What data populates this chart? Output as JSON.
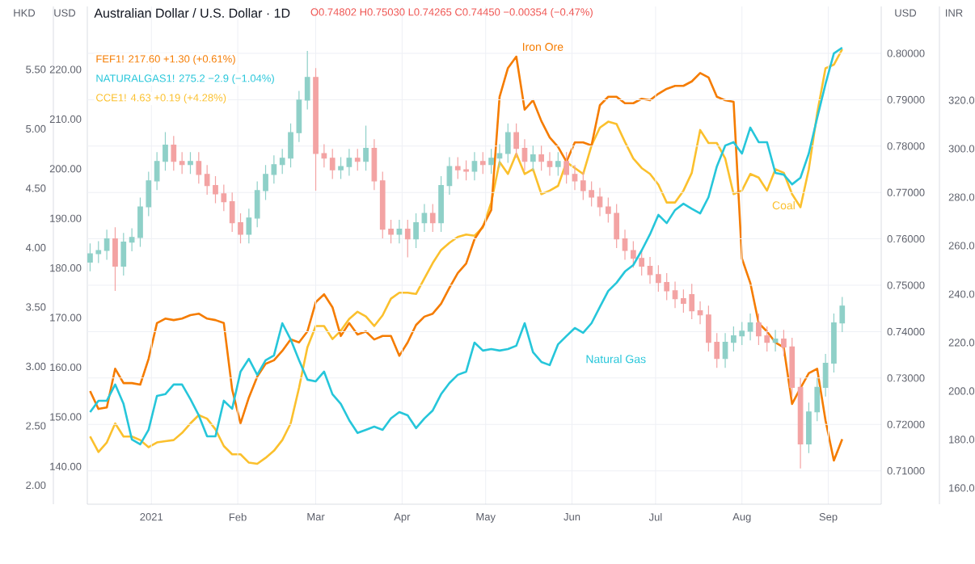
{
  "chart_data": [
    {
      "type": "candlestick",
      "title": "Australian Dollar / U.S. Dollar · 1D",
      "subtitle": "O0.74802 H0.75030 L0.74265 C0.74450 −0.00354 (−0.47%)",
      "annotations": [
        "FEF1! 217.60 +1.30 (+0.61%)",
        "NATURALGAS1! 275.2 −2.9 (−1.04%)",
        "CCE1! 4.63 +0.19 (+4.28%)"
      ],
      "ylabel": "USD",
      "y2label": "USD",
      "y3label": "HKD",
      "colors": [
        "#8fd0c8",
        "#8fd0c8",
        "#8fd0c8",
        "#f3a3a3",
        "#8fd0c8",
        "#8fd0c8",
        "#8fd0c8",
        "#8fd0c8",
        "#8fd0c8",
        "#8fd0c8",
        "#f3a3a3",
        "#f3a3a3",
        "#8fd0c8",
        "#f3a3a3",
        "#f3a3a3",
        "#f3a3a3",
        "#f3a3a3",
        "#f3a3a3",
        "#f3a3a3",
        "#8fd0c8",
        "#8fd0c8",
        "#8fd0c8",
        "#8fd0c8",
        "#8fd0c8",
        "#8fd0c8",
        "#8fd0c8",
        "#8fd0c8",
        "#f3a3a3",
        "#f3a3a3",
        "#f3a3a3",
        "#8fd0c8",
        "#8fd0c8",
        "#f3a3a3",
        "#8fd0c8",
        "#f3a3a3",
        "#f3a3a3",
        "#f3a3a3",
        "#8fd0c8",
        "#f3a3a3",
        "#8fd0c8",
        "#8fd0c8",
        "#f3a3a3",
        "#8fd0c8",
        "#8fd0c8",
        "#f3a3a3",
        "#f3a3a3",
        "#8fd0c8",
        "#f3a3a3",
        "#8fd0c8",
        "#8fd0c8",
        "#8fd0c8",
        "#f3a3a3",
        "#f3a3a3",
        "#8fd0c8",
        "#f3a3a3",
        "#f3a3a3",
        "#8fd0c8",
        "#f3a3a3",
        "#f3a3a3",
        "#f3a3a3",
        "#f3a3a3",
        "#f3a3a3",
        "#f3a3a3",
        "#f3a3a3",
        "#f3a3a3",
        "#f3a3a3",
        "#f3a3a3",
        "#f3a3a3",
        "#f3a3a3",
        "#f3a3a3",
        "#f3a3a3",
        "#f3a3a3",
        "#f3a3a3",
        "#f3a3a3",
        "#f3a3a3",
        "#f3a3a3",
        "#8fd0c8",
        "#8fd0c8",
        "#8fd0c8",
        "#8fd0c8",
        "#f3a3a3",
        "#f3a3a3",
        "#8fd0c8",
        "#f3a3a3",
        "#f3a3a3",
        "#f3a3a3",
        "#8fd0c8",
        "#8fd0c8",
        "#8fd0c8",
        "#8fd0c8",
        "#8fd0c8"
      ],
      "grid": true,
      "xlim": [
        "2020-12-09",
        "2021-09-20"
      ],
      "xticks": [
        {
          "value": "2021-01-01",
          "label": "2021"
        },
        {
          "value": "2021-02-01",
          "label": "Feb"
        },
        {
          "value": "2021-03-01",
          "label": "Mar"
        },
        {
          "value": "2021-04-01",
          "label": "Apr"
        },
        {
          "value": "2021-05-01",
          "label": "May"
        },
        {
          "value": "2021-06-01",
          "label": "Jun"
        },
        {
          "value": "2021-07-01",
          "label": "Jul"
        },
        {
          "value": "2021-08-01",
          "label": "Aug"
        },
        {
          "value": "2021-09-01",
          "label": "Sep"
        }
      ],
      "ylim": [
        0.7028,
        0.8101
      ],
      "yticks": [
        {
          "value": 0.71,
          "label": "0.71000"
        },
        {
          "value": 0.72,
          "label": "0.72000"
        },
        {
          "value": 0.73,
          "label": "0.73000"
        },
        {
          "value": 0.74,
          "label": "0.74000"
        },
        {
          "value": 0.75,
          "label": "0.75000"
        },
        {
          "value": 0.76,
          "label": "0.76000"
        },
        {
          "value": 0.77,
          "label": "0.77000"
        },
        {
          "value": 0.78,
          "label": "0.78000"
        },
        {
          "value": 0.79,
          "label": "0.79000"
        },
        {
          "value": 0.8,
          "label": "0.80000"
        }
      ],
      "y2lim": [
        132.4,
        232.7
      ],
      "y2ticks": [
        {
          "value": 140,
          "label": "140.00"
        },
        {
          "value": 150,
          "label": "150.00"
        },
        {
          "value": 160,
          "label": "160.00"
        },
        {
          "value": 170,
          "label": "170.00"
        },
        {
          "value": 180,
          "label": "180.00"
        },
        {
          "value": 190,
          "label": "190.00"
        },
        {
          "value": 200,
          "label": "200.00"
        },
        {
          "value": 210,
          "label": "210.00"
        },
        {
          "value": 220,
          "label": "220.00"
        }
      ],
      "y3lim": [
        1.84,
        6.03
      ],
      "y3ticks": [
        {
          "value": 2,
          "label": "2.00"
        },
        {
          "value": 2.5,
          "label": "2.50"
        },
        {
          "value": 3,
          "label": "3.00"
        },
        {
          "value": 3.5,
          "label": "3.50"
        },
        {
          "value": 4,
          "label": "4.00"
        },
        {
          "value": 4.5,
          "label": "4.50"
        },
        {
          "value": 5,
          "label": "5.00"
        },
        {
          "value": 5.5,
          "label": "5.50"
        }
      ],
      "x": [
        "2020-12-10",
        "2020-12-13",
        "2020-12-16",
        "2020-12-19",
        "2020-12-22",
        "2020-12-25",
        "2020-12-28",
        "2020-12-31",
        "2021-01-03",
        "2021-01-06",
        "2021-01-09",
        "2021-01-12",
        "2021-01-15",
        "2021-01-18",
        "2021-01-21",
        "2021-01-24",
        "2021-01-27",
        "2021-01-30",
        "2021-02-02",
        "2021-02-05",
        "2021-02-08",
        "2021-02-11",
        "2021-02-14",
        "2021-02-17",
        "2021-02-20",
        "2021-02-23",
        "2021-02-26",
        "2021-03-01",
        "2021-03-04",
        "2021-03-07",
        "2021-03-10",
        "2021-03-13",
        "2021-03-16",
        "2021-03-19",
        "2021-03-22",
        "2021-03-25",
        "2021-03-28",
        "2021-03-31",
        "2021-04-03",
        "2021-04-06",
        "2021-04-09",
        "2021-04-12",
        "2021-04-15",
        "2021-04-18",
        "2021-04-21",
        "2021-04-24",
        "2021-04-27",
        "2021-04-30",
        "2021-05-03",
        "2021-05-06",
        "2021-05-09",
        "2021-05-12",
        "2021-05-15",
        "2021-05-18",
        "2021-05-21",
        "2021-05-24",
        "2021-05-27",
        "2021-05-30",
        "2021-06-02",
        "2021-06-05",
        "2021-06-08",
        "2021-06-11",
        "2021-06-14",
        "2021-06-17",
        "2021-06-20",
        "2021-06-23",
        "2021-06-26",
        "2021-06-29",
        "2021-07-02",
        "2021-07-05",
        "2021-07-08",
        "2021-07-11",
        "2021-07-14",
        "2021-07-17",
        "2021-07-20",
        "2021-07-23",
        "2021-07-26",
        "2021-07-29",
        "2021-08-01",
        "2021-08-04",
        "2021-08-07",
        "2021-08-10",
        "2021-08-13",
        "2021-08-16",
        "2021-08-19",
        "2021-08-22",
        "2021-08-25",
        "2021-08-28",
        "2021-08-31",
        "2021-09-03",
        "2021-09-06"
      ],
      "ohlc": [
        [
          0.755,
          0.759,
          0.753,
          0.7568
        ],
        [
          0.7568,
          0.7595,
          0.7548,
          0.7575
        ],
        [
          0.7575,
          0.762,
          0.7555,
          0.76
        ],
        [
          0.76,
          0.7625,
          0.7488,
          0.7541
        ],
        [
          0.7541,
          0.7613,
          0.7521,
          0.7593
        ],
        [
          0.7593,
          0.7623,
          0.7573,
          0.7603
        ],
        [
          0.7603,
          0.7689,
          0.7583,
          0.7669
        ],
        [
          0.7669,
          0.7745,
          0.7649,
          0.7725
        ],
        [
          0.7725,
          0.7787,
          0.7705,
          0.7767
        ],
        [
          0.7767,
          0.783,
          0.7747,
          0.7802
        ],
        [
          0.7802,
          0.7822,
          0.7747,
          0.7767
        ],
        [
          0.7767,
          0.7787,
          0.774,
          0.776
        ],
        [
          0.776,
          0.7787,
          0.774,
          0.7767
        ],
        [
          0.7767,
          0.7787,
          0.7719,
          0.7739
        ],
        [
          0.7739,
          0.7759,
          0.7695,
          0.7715
        ],
        [
          0.7715,
          0.7735,
          0.7677,
          0.7697
        ],
        [
          0.7697,
          0.7717,
          0.766,
          0.768
        ],
        [
          0.768,
          0.77,
          0.7615,
          0.7635
        ],
        [
          0.7635,
          0.7655,
          0.759,
          0.761
        ],
        [
          0.761,
          0.7665,
          0.759,
          0.7645
        ],
        [
          0.7645,
          0.7724,
          0.7625,
          0.7704
        ],
        [
          0.7704,
          0.7759,
          0.7684,
          0.7739
        ],
        [
          0.7739,
          0.778,
          0.7719,
          0.776
        ],
        [
          0.776,
          0.7794,
          0.774,
          0.7774
        ],
        [
          0.7774,
          0.7849,
          0.7754,
          0.7829
        ],
        [
          0.7829,
          0.7919,
          0.7809,
          0.7899
        ],
        [
          0.7899,
          0.8005,
          0.7879,
          0.7948
        ],
        [
          0.7948,
          0.7968,
          0.7704,
          0.7784
        ],
        [
          0.7784,
          0.7804,
          0.7754,
          0.7774
        ],
        [
          0.7774,
          0.7794,
          0.7729,
          0.7749
        ],
        [
          0.7749,
          0.7776,
          0.7729,
          0.7756
        ],
        [
          0.7756,
          0.7794,
          0.7736,
          0.7774
        ],
        [
          0.7774,
          0.7794,
          0.7747,
          0.7767
        ],
        [
          0.7767,
          0.7844,
          0.7747,
          0.7795
        ],
        [
          0.7795,
          0.7815,
          0.7705,
          0.7725
        ],
        [
          0.7725,
          0.7745,
          0.7601,
          0.7621
        ],
        [
          0.7621,
          0.7641,
          0.759,
          0.761
        ],
        [
          0.761,
          0.7641,
          0.759,
          0.7621
        ],
        [
          0.7621,
          0.7641,
          0.756,
          0.76
        ],
        [
          0.76,
          0.7655,
          0.758,
          0.7635
        ],
        [
          0.7635,
          0.7675,
          0.7615,
          0.7655
        ],
        [
          0.7655,
          0.7675,
          0.7615,
          0.7635
        ],
        [
          0.7635,
          0.7735,
          0.7615,
          0.7715
        ],
        [
          0.7715,
          0.7776,
          0.7695,
          0.7756
        ],
        [
          0.7756,
          0.7776,
          0.7729,
          0.7749
        ],
        [
          0.7749,
          0.7769,
          0.7726,
          0.7746
        ],
        [
          0.7746,
          0.7787,
          0.7726,
          0.7767
        ],
        [
          0.7767,
          0.7787,
          0.774,
          0.776
        ],
        [
          0.776,
          0.7794,
          0.774,
          0.7774
        ],
        [
          0.7774,
          0.7804,
          0.7754,
          0.7784
        ],
        [
          0.7784,
          0.7849,
          0.7764,
          0.7829
        ],
        [
          0.7829,
          0.7849,
          0.7775,
          0.7795
        ],
        [
          0.7795,
          0.7815,
          0.7747,
          0.7767
        ],
        [
          0.7767,
          0.7801,
          0.7747,
          0.7781
        ],
        [
          0.7781,
          0.7801,
          0.7747,
          0.7767
        ],
        [
          0.7767,
          0.7787,
          0.7736,
          0.7756
        ],
        [
          0.7756,
          0.7787,
          0.7736,
          0.7767
        ],
        [
          0.7767,
          0.7787,
          0.7719,
          0.7739
        ],
        [
          0.7739,
          0.7759,
          0.7705,
          0.7725
        ],
        [
          0.7725,
          0.7745,
          0.7684,
          0.7704
        ],
        [
          0.7704,
          0.7724,
          0.767,
          0.769
        ],
        [
          0.769,
          0.771,
          0.7649,
          0.7669
        ],
        [
          0.7669,
          0.7689,
          0.7635,
          0.7655
        ],
        [
          0.7655,
          0.7675,
          0.758,
          0.76
        ],
        [
          0.76,
          0.762,
          0.7555,
          0.7575
        ],
        [
          0.7575,
          0.7595,
          0.7538,
          0.7558
        ],
        [
          0.7558,
          0.7578,
          0.7521,
          0.7541
        ],
        [
          0.7541,
          0.7561,
          0.7503,
          0.7523
        ],
        [
          0.7523,
          0.7543,
          0.7486,
          0.7506
        ],
        [
          0.7506,
          0.7526,
          0.7468,
          0.7488
        ],
        [
          0.7488,
          0.7508,
          0.7451,
          0.7471
        ],
        [
          0.7471,
          0.7491,
          0.7441,
          0.7461
        ],
        [
          0.748,
          0.7503,
          0.7427,
          0.7445
        ],
        [
          0.7445,
          0.7465,
          0.7416,
          0.7436
        ],
        [
          0.7436,
          0.7456,
          0.7357,
          0.7377
        ],
        [
          0.7377,
          0.7397,
          0.7322,
          0.7342
        ],
        [
          0.7342,
          0.7397,
          0.7322,
          0.7377
        ],
        [
          0.7377,
          0.7411,
          0.7357,
          0.7391
        ],
        [
          0.7391,
          0.7421,
          0.7371,
          0.7401
        ],
        [
          0.7401,
          0.7439,
          0.7381,
          0.7419
        ],
        [
          0.7419,
          0.7439,
          0.7371,
          0.7391
        ],
        [
          0.7391,
          0.7411,
          0.7357,
          0.7377
        ],
        [
          0.7377,
          0.7404,
          0.7357,
          0.7384
        ],
        [
          0.7384,
          0.7404,
          0.7347,
          0.7367
        ],
        [
          0.7367,
          0.7387,
          0.726,
          0.728
        ],
        [
          0.728,
          0.73,
          0.7105,
          0.7158
        ],
        [
          0.7158,
          0.7247,
          0.7138,
          0.7227
        ],
        [
          0.7227,
          0.73,
          0.7207,
          0.728
        ],
        [
          0.728,
          0.7352,
          0.726,
          0.7332
        ],
        [
          0.7332,
          0.7439,
          0.7312,
          0.7419
        ],
        [
          0.7419,
          0.7475,
          0.7399,
          0.7455
        ]
      ],
      "series": [
        {
          "name": "Iron Ore",
          "type": "line",
          "axis": "y2",
          "color": "#f57c00",
          "values": [
            155.2,
            151.6,
            151.9,
            159.7,
            156.8,
            156.8,
            156.5,
            161.7,
            168.9,
            169.8,
            169.5,
            169.8,
            170.5,
            170.8,
            169.8,
            169.5,
            168.9,
            155.5,
            148.7,
            153.9,
            158.1,
            160.7,
            161.4,
            163.3,
            165.6,
            165.0,
            167.2,
            173.1,
            174.7,
            172.1,
            166.3,
            168.9,
            166.6,
            167.2,
            165.6,
            166.3,
            166.3,
            162.3,
            165.0,
            168.5,
            170.2,
            170.8,
            172.8,
            176.0,
            179.0,
            180.9,
            185.8,
            188.4,
            191.7,
            214.5,
            220.3,
            222.6,
            211.9,
            213.8,
            209.6,
            206.3,
            204.4,
            201.4,
            205.3,
            205.3,
            204.7,
            212.8,
            214.5,
            214.5,
            213.2,
            213.2,
            214.1,
            213.8,
            215.1,
            216.1,
            216.7,
            216.7,
            217.6,
            219.3,
            218.4,
            214.5,
            213.8,
            213.5,
            181.9,
            177.0,
            168.9,
            167.2,
            165.0,
            164.0,
            152.6,
            155.8,
            158.8,
            159.7,
            149.3,
            141.2,
            145.5
          ]
        },
        {
          "name": "Coal",
          "type": "line",
          "axis": "y3",
          "color": "#fbc02d",
          "values": [
            2.41,
            2.28,
            2.36,
            2.52,
            2.41,
            2.41,
            2.38,
            2.32,
            2.36,
            2.37,
            2.38,
            2.44,
            2.52,
            2.59,
            2.56,
            2.47,
            2.33,
            2.26,
            2.26,
            2.19,
            2.18,
            2.23,
            2.29,
            2.38,
            2.52,
            2.82,
            3.16,
            3.34,
            3.34,
            3.23,
            3.3,
            3.4,
            3.46,
            3.42,
            3.34,
            3.43,
            3.57,
            3.62,
            3.62,
            3.61,
            3.74,
            3.87,
            3.98,
            4.04,
            4.09,
            4.11,
            4.1,
            4.17,
            4.38,
            4.72,
            4.62,
            4.79,
            4.62,
            4.66,
            4.45,
            4.48,
            4.52,
            4.72,
            4.67,
            4.62,
            4.86,
            5.01,
            5.06,
            5.04,
            4.89,
            4.75,
            4.67,
            4.62,
            4.53,
            4.38,
            4.38,
            4.48,
            4.63,
            4.99,
            4.88,
            4.88,
            4.75,
            4.45,
            4.48,
            4.62,
            4.59,
            4.48,
            4.66,
            4.63,
            4.45,
            4.34,
            4.66,
            5.13,
            5.51,
            5.54,
            5.67
          ]
        }
      ]
    },
    {
      "type": "line",
      "ylabel": "INR",
      "tick_labels": "y",
      "xlim": [
        "2020-12-09",
        "2021-09-20"
      ],
      "ylim": [
        153.3,
        358.7
      ],
      "yticks": [
        {
          "value": 160,
          "label": "160.0"
        },
        {
          "value": 180,
          "label": "180.0"
        },
        {
          "value": 200,
          "label": "200.0"
        },
        {
          "value": 220,
          "label": "220.0"
        },
        {
          "value": 240,
          "label": "240.0"
        },
        {
          "value": 260,
          "label": "260.0"
        },
        {
          "value": 280,
          "label": "280.0"
        },
        {
          "value": 300,
          "label": "300.0"
        },
        {
          "value": 320,
          "label": "320.0"
        }
      ],
      "x": [
        "2020-12-10",
        "2020-12-13",
        "2020-12-16",
        "2020-12-19",
        "2020-12-22",
        "2020-12-25",
        "2020-12-28",
        "2020-12-31",
        "2021-01-03",
        "2021-01-06",
        "2021-01-09",
        "2021-01-12",
        "2021-01-15",
        "2021-01-18",
        "2021-01-21",
        "2021-01-24",
        "2021-01-27",
        "2021-01-30",
        "2021-02-02",
        "2021-02-05",
        "2021-02-08",
        "2021-02-11",
        "2021-02-14",
        "2021-02-17",
        "2021-02-20",
        "2021-02-23",
        "2021-02-26",
        "2021-03-01",
        "2021-03-04",
        "2021-03-07",
        "2021-03-10",
        "2021-03-13",
        "2021-03-16",
        "2021-03-19",
        "2021-03-22",
        "2021-03-25",
        "2021-03-28",
        "2021-03-31",
        "2021-04-03",
        "2021-04-06",
        "2021-04-09",
        "2021-04-12",
        "2021-04-15",
        "2021-04-18",
        "2021-04-21",
        "2021-04-24",
        "2021-04-27",
        "2021-04-30",
        "2021-05-03",
        "2021-05-06",
        "2021-05-09",
        "2021-05-12",
        "2021-05-15",
        "2021-05-18",
        "2021-05-21",
        "2021-05-24",
        "2021-05-27",
        "2021-05-30",
        "2021-06-02",
        "2021-06-05",
        "2021-06-08",
        "2021-06-11",
        "2021-06-14",
        "2021-06-17",
        "2021-06-20",
        "2021-06-23",
        "2021-06-26",
        "2021-06-29",
        "2021-07-02",
        "2021-07-05",
        "2021-07-08",
        "2021-07-11",
        "2021-07-14",
        "2021-07-17",
        "2021-07-20",
        "2021-07-23",
        "2021-07-26",
        "2021-07-29",
        "2021-08-01",
        "2021-08-04",
        "2021-08-07",
        "2021-08-10",
        "2021-08-13",
        "2021-08-16",
        "2021-08-19",
        "2021-08-22",
        "2021-08-25",
        "2021-08-28",
        "2021-08-31",
        "2021-09-03",
        "2021-09-06"
      ],
      "series": [
        {
          "name": "Natural Gas",
          "color": "#26c6da",
          "values": [
            191.3,
            196.0,
            196.0,
            202.7,
            194.7,
            180.0,
            178.0,
            184.0,
            198.0,
            198.7,
            202.7,
            202.7,
            196.7,
            190.0,
            181.3,
            181.3,
            196.0,
            192.7,
            208.0,
            213.3,
            206.7,
            212.7,
            214.7,
            228.0,
            221.3,
            212.7,
            204.7,
            204.0,
            208.0,
            198.7,
            194.7,
            188.0,
            182.7,
            184.0,
            185.3,
            184.0,
            188.7,
            191.3,
            190.0,
            184.7,
            188.7,
            192.0,
            198.7,
            203.3,
            206.7,
            208.0,
            220.0,
            216.7,
            217.3,
            216.7,
            217.3,
            218.7,
            228.0,
            216.0,
            212.0,
            210.7,
            219.3,
            222.7,
            226.0,
            224.0,
            228.0,
            234.7,
            241.3,
            244.7,
            249.3,
            252.0,
            258.0,
            264.7,
            272.7,
            269.3,
            274.7,
            277.3,
            275.2,
            273.3,
            280.0,
            292.7,
            301.3,
            302.7,
            298.0,
            308.7,
            302.7,
            302.7,
            290.0,
            289.3,
            285.3,
            288.0,
            298.0,
            312.7,
            326.7,
            339.3,
            341.7
          ]
        }
      ]
    }
  ]
}
